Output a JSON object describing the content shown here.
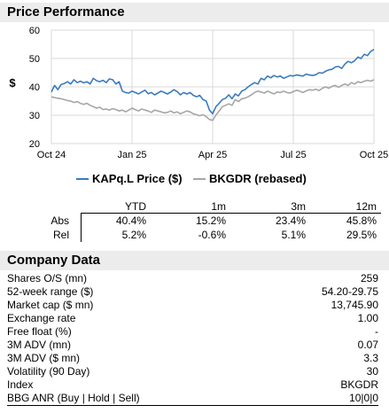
{
  "price_section": {
    "title": "Price Performance"
  },
  "chart_data": {
    "type": "line",
    "ylabel": "$",
    "ylim": [
      20,
      60
    ],
    "yticks": [
      "20",
      "30",
      "40",
      "50",
      "60"
    ],
    "xticks": [
      "Oct 24",
      "Jan 25",
      "Apr 25",
      "Jul 25",
      "Oct 25"
    ],
    "grid": true,
    "legend_placement": "bottom",
    "series": [
      {
        "name": "KAPq.L Price ($)",
        "color": "#3a7bbf",
        "x": [
          0,
          0.01,
          0.02,
          0.03,
          0.04,
          0.05,
          0.06,
          0.07,
          0.08,
          0.09,
          0.1,
          0.11,
          0.12,
          0.13,
          0.14,
          0.15,
          0.16,
          0.17,
          0.18,
          0.19,
          0.2,
          0.21,
          0.22,
          0.23,
          0.24,
          0.25,
          0.26,
          0.27,
          0.28,
          0.29,
          0.3,
          0.31,
          0.32,
          0.33,
          0.34,
          0.35,
          0.36,
          0.37,
          0.38,
          0.39,
          0.4,
          0.41,
          0.42,
          0.43,
          0.44,
          0.45,
          0.46,
          0.47,
          0.48,
          0.49,
          0.5,
          0.51,
          0.52,
          0.53,
          0.54,
          0.55,
          0.56,
          0.57,
          0.58,
          0.59,
          0.6,
          0.61,
          0.62,
          0.63,
          0.64,
          0.65,
          0.66,
          0.67,
          0.68,
          0.69,
          0.7,
          0.71,
          0.72,
          0.73,
          0.74,
          0.75,
          0.76,
          0.77,
          0.78,
          0.79,
          0.8,
          0.81,
          0.82,
          0.83,
          0.84,
          0.85,
          0.86,
          0.87,
          0.88,
          0.89,
          0.9,
          0.91,
          0.92,
          0.93,
          0.94,
          0.95,
          0.96,
          0.97,
          0.98,
          0.99,
          1.0
        ],
        "values": [
          38.2,
          40.5,
          39.0,
          40.8,
          41.2,
          41.8,
          41.0,
          42.5,
          41.5,
          42.0,
          41.4,
          41.8,
          41.0,
          43.0,
          42.2,
          41.8,
          42.3,
          41.5,
          42.8,
          42.5,
          41.0,
          41.8,
          38.5,
          38.0,
          37.8,
          38.5,
          38.0,
          37.5,
          38.2,
          38.8,
          37.6,
          38.0,
          37.2,
          37.8,
          38.5,
          38.0,
          37.5,
          38.2,
          39.0,
          38.3,
          37.2,
          38.0,
          37.5,
          38.0,
          37.0,
          36.5,
          37.0,
          35.5,
          35.0,
          31.8,
          30.5,
          33.0,
          34.2,
          35.5,
          36.0,
          37.2,
          35.8,
          37.5,
          36.8,
          38.5,
          39.0,
          40.0,
          40.8,
          41.5,
          41.0,
          43.0,
          42.5,
          43.8,
          43.2,
          44.0,
          43.5,
          43.8,
          43.0,
          43.5,
          44.0,
          43.8,
          44.2,
          44.0,
          43.8,
          44.5,
          44.2,
          44.0,
          44.3,
          45.0,
          44.8,
          45.5,
          46.0,
          46.2,
          47.0,
          47.2,
          46.5,
          48.0,
          49.0,
          48.5,
          49.2,
          50.5,
          50.0,
          51.5,
          51.0,
          52.5,
          53.2
        ]
      },
      {
        "name": "BKGDR (rebased)",
        "color": "#a6a6a6",
        "x": [
          0,
          0.01,
          0.02,
          0.03,
          0.04,
          0.05,
          0.06,
          0.07,
          0.08,
          0.09,
          0.1,
          0.11,
          0.12,
          0.13,
          0.14,
          0.15,
          0.16,
          0.17,
          0.18,
          0.19,
          0.2,
          0.21,
          0.22,
          0.23,
          0.24,
          0.25,
          0.26,
          0.27,
          0.28,
          0.29,
          0.3,
          0.31,
          0.32,
          0.33,
          0.34,
          0.35,
          0.36,
          0.37,
          0.38,
          0.39,
          0.4,
          0.41,
          0.42,
          0.43,
          0.44,
          0.45,
          0.46,
          0.47,
          0.48,
          0.49,
          0.5,
          0.51,
          0.52,
          0.53,
          0.54,
          0.55,
          0.56,
          0.57,
          0.58,
          0.59,
          0.6,
          0.61,
          0.62,
          0.63,
          0.64,
          0.65,
          0.66,
          0.67,
          0.68,
          0.69,
          0.7,
          0.71,
          0.72,
          0.73,
          0.74,
          0.75,
          0.76,
          0.77,
          0.78,
          0.79,
          0.8,
          0.81,
          0.82,
          0.83,
          0.84,
          0.85,
          0.86,
          0.87,
          0.88,
          0.89,
          0.9,
          0.91,
          0.92,
          0.93,
          0.94,
          0.95,
          0.96,
          0.97,
          0.98,
          0.99,
          1.0
        ],
        "values": [
          36.5,
          36.2,
          36.0,
          35.8,
          35.5,
          35.2,
          35.0,
          34.5,
          34.8,
          34.2,
          33.8,
          34.2,
          33.5,
          33.0,
          32.5,
          32.8,
          32.0,
          32.2,
          31.8,
          32.3,
          32.0,
          31.5,
          31.8,
          31.2,
          31.8,
          32.5,
          32.0,
          31.5,
          32.2,
          31.8,
          31.5,
          31.0,
          31.8,
          31.5,
          31.2,
          30.8,
          31.0,
          31.5,
          30.8,
          31.2,
          30.5,
          31.0,
          31.5,
          31.2,
          30.5,
          30.2,
          29.8,
          30.2,
          29.5,
          28.5,
          28.2,
          30.0,
          31.5,
          33.0,
          33.5,
          34.0,
          33.5,
          35.5,
          34.8,
          35.8,
          36.0,
          36.5,
          37.2,
          38.0,
          38.5,
          38.2,
          37.8,
          38.5,
          38.0,
          37.5,
          38.2,
          38.0,
          38.5,
          38.0,
          37.8,
          38.3,
          38.8,
          38.5,
          38.0,
          38.6,
          39.0,
          38.8,
          39.2,
          38.7,
          39.5,
          40.0,
          39.5,
          40.2,
          40.5,
          39.8,
          40.5,
          41.0,
          40.5,
          41.5,
          41.0,
          41.8,
          41.5,
          42.0,
          42.3,
          42.0,
          42.5
        ]
      }
    ]
  },
  "perf_table": {
    "headers": [
      "YTD",
      "1m",
      "3m",
      "12m"
    ],
    "rows": [
      {
        "label": "Abs",
        "values": [
          "40.4%",
          "15.2%",
          "23.4%",
          "45.8%"
        ]
      },
      {
        "label": "Rel",
        "values": [
          "5.2%",
          "-0.6%",
          "5.1%",
          "29.5%"
        ]
      }
    ]
  },
  "company_section": {
    "title": "Company Data",
    "rows": [
      {
        "label": "Shares O/S (mn)",
        "value": "259"
      },
      {
        "label": "52-week range ($)",
        "value": "54.20-29.75"
      },
      {
        "label": "Market cap ($ mn)",
        "value": "13,745.90"
      },
      {
        "label": "Exchange rate",
        "value": "1.00"
      },
      {
        "label": "Free float (%)",
        "value": "-"
      },
      {
        "label": "3M ADV (mn)",
        "value": "0.07"
      },
      {
        "label": "3M ADV ($ mn)",
        "value": "3.3"
      },
      {
        "label": "Volatility (90 Day)",
        "value": "30"
      },
      {
        "label": "Index",
        "value": "BKGDR"
      },
      {
        "label": "BBG ANR (Buy | Hold | Sell)",
        "value": "10|0|0"
      }
    ]
  }
}
